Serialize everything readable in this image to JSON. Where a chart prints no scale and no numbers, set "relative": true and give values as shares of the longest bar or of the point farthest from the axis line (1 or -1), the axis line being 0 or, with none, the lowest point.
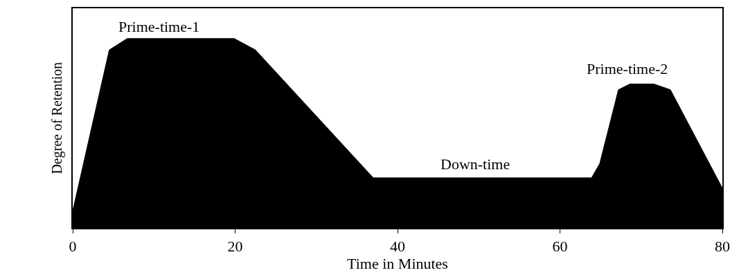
{
  "chart_data": {
    "type": "area",
    "relative": true,
    "xlabel": "Time in Minutes",
    "ylabel": "Degree of Retention",
    "x": [
      0,
      4.5,
      6.7,
      19.9,
      22.5,
      37.0,
      63.9,
      64.9,
      67.2,
      68.6,
      71.6,
      73.6,
      80
    ],
    "series": [
      {
        "color": "#000000",
        "values": [
          0.09,
          0.94,
          1,
          1,
          0.94,
          0.265,
          0.265,
          0.34,
          0.73,
          0.76,
          0.76,
          0.73,
          0.21
        ]
      }
    ],
    "xlim": [
      0,
      80
    ],
    "xticks": [
      0,
      20,
      40,
      60,
      80
    ],
    "legend": false,
    "annotations": [
      "Prime-time-1",
      "Down-time",
      "Prime-time-2"
    ]
  }
}
